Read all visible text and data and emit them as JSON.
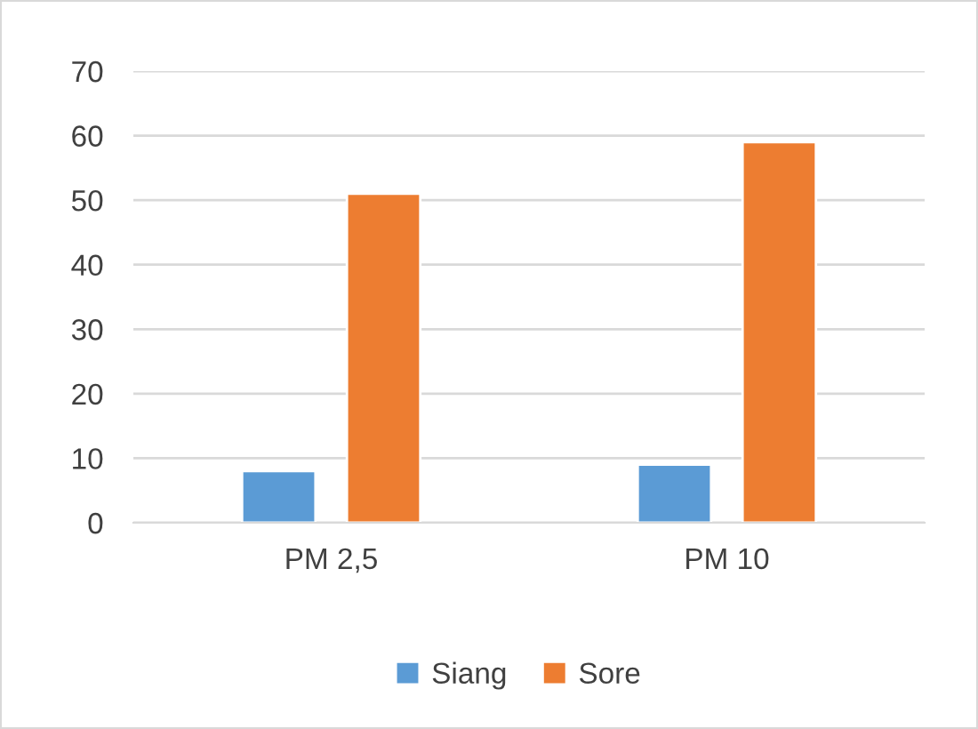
{
  "chart_data": {
    "type": "bar",
    "categories": [
      "PM 2,5",
      "PM 10"
    ],
    "series": [
      {
        "name": "Siang",
        "color": "#5b9bd5",
        "values": [
          8,
          9
        ]
      },
      {
        "name": "Sore",
        "color": "#ed7d31",
        "values": [
          51,
          59
        ]
      }
    ],
    "ylim": [
      0,
      70
    ],
    "yticks": [
      0,
      10,
      20,
      30,
      40,
      50,
      60,
      70
    ],
    "grid": "y",
    "legend": "bottom"
  }
}
